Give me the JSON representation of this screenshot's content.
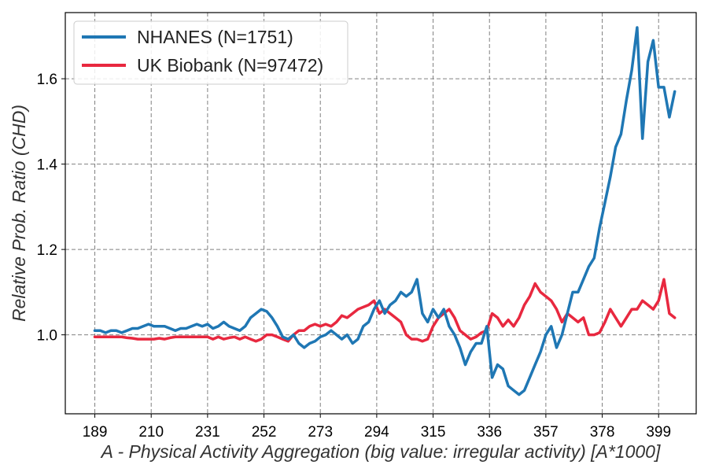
{
  "chart_data": {
    "type": "line",
    "xlabel": "A - Physical Activity Aggregation (big value: irregular activity) [A*1000]",
    "ylabel": "Relative Prob. Ratio (CHD)",
    "xlim": [
      178,
      413
    ],
    "ylim": [
      0.815,
      1.755
    ],
    "xticks": [
      189,
      210,
      231,
      252,
      273,
      294,
      315,
      336,
      357,
      378,
      399
    ],
    "yticks": [
      1.0,
      1.2,
      1.4,
      1.6
    ],
    "ytick_labels": [
      "1.0",
      "1.2",
      "1.4",
      "1.6"
    ],
    "grid": true,
    "legend_position": "top-left",
    "series": [
      {
        "name": "NHANES (N=1751)",
        "color": "#1f77b4",
        "x": [
          189,
          191,
          193,
          195,
          197,
          199,
          201,
          203,
          205,
          207,
          209,
          211,
          213,
          215,
          217,
          219,
          221,
          223,
          225,
          227,
          229,
          231,
          233,
          235,
          237,
          239,
          241,
          243,
          245,
          247,
          249,
          251,
          253,
          255,
          257,
          259,
          261,
          263,
          265,
          267,
          269,
          271,
          273,
          275,
          277,
          279,
          281,
          283,
          285,
          287,
          289,
          291,
          293,
          295,
          297,
          299,
          301,
          303,
          305,
          307,
          309,
          311,
          313,
          315,
          317,
          319,
          321,
          323,
          325,
          327,
          329,
          331,
          333,
          335,
          337,
          339,
          341,
          343,
          345,
          347,
          349,
          351,
          353,
          355,
          357,
          359,
          361,
          363,
          365,
          367,
          369,
          371,
          373,
          375,
          377,
          379,
          381,
          383,
          385,
          387,
          389,
          391,
          393,
          395,
          397,
          399,
          401,
          403,
          405
        ],
        "values": [
          1.01,
          1.01,
          1.005,
          1.01,
          1.01,
          1.005,
          1.01,
          1.015,
          1.015,
          1.02,
          1.025,
          1.02,
          1.02,
          1.02,
          1.015,
          1.01,
          1.015,
          1.015,
          1.02,
          1.025,
          1.02,
          1.025,
          1.015,
          1.02,
          1.03,
          1.02,
          1.015,
          1.01,
          1.02,
          1.04,
          1.05,
          1.06,
          1.055,
          1.04,
          1.02,
          0.995,
          0.99,
          1.0,
          0.98,
          0.97,
          0.98,
          0.985,
          0.995,
          1.0,
          1.01,
          1.0,
          0.99,
          1.0,
          0.98,
          0.99,
          1.02,
          1.03,
          1.06,
          1.08,
          1.05,
          1.07,
          1.08,
          1.1,
          1.09,
          1.1,
          1.13,
          1.05,
          1.03,
          1.06,
          1.04,
          1.06,
          1.02,
          1.0,
          0.97,
          0.93,
          0.96,
          0.98,
          0.98,
          1.02,
          0.9,
          0.93,
          0.92,
          0.88,
          0.87,
          0.86,
          0.87,
          0.9,
          0.93,
          0.96,
          1.0,
          1.02,
          0.97,
          1.0,
          1.05,
          1.1,
          1.1,
          1.13,
          1.16,
          1.18,
          1.25,
          1.31,
          1.37,
          1.44,
          1.47,
          1.55,
          1.62,
          1.72,
          1.46,
          1.64,
          1.69,
          1.58,
          1.58,
          1.51,
          1.57
        ]
      },
      {
        "name": "UK Biobank (N=97472)",
        "color": "#e8283f",
        "x": [
          189,
          191,
          193,
          195,
          197,
          199,
          201,
          203,
          205,
          207,
          209,
          211,
          213,
          215,
          217,
          219,
          221,
          223,
          225,
          227,
          229,
          231,
          233,
          235,
          237,
          239,
          241,
          243,
          245,
          247,
          249,
          251,
          253,
          255,
          257,
          259,
          261,
          263,
          265,
          267,
          269,
          271,
          273,
          275,
          277,
          279,
          281,
          283,
          285,
          287,
          289,
          291,
          293,
          295,
          297,
          299,
          301,
          303,
          305,
          307,
          309,
          311,
          313,
          315,
          317,
          319,
          321,
          323,
          325,
          327,
          329,
          331,
          333,
          335,
          337,
          339,
          341,
          343,
          345,
          347,
          349,
          351,
          353,
          355,
          357,
          359,
          361,
          363,
          365,
          367,
          369,
          371,
          373,
          375,
          377,
          379,
          381,
          383,
          385,
          387,
          389,
          391,
          393,
          395,
          397,
          399,
          401,
          403,
          405
        ],
        "values": [
          0.995,
          0.995,
          0.995,
          0.995,
          0.995,
          0.995,
          0.993,
          0.992,
          0.99,
          0.99,
          0.99,
          0.99,
          0.992,
          0.99,
          0.993,
          0.995,
          0.995,
          0.995,
          0.995,
          0.995,
          0.995,
          0.995,
          0.99,
          0.995,
          0.99,
          0.993,
          0.995,
          0.99,
          0.995,
          0.99,
          0.985,
          0.99,
          1.0,
          1.0,
          0.995,
          0.99,
          0.985,
          1.0,
          1.01,
          1.01,
          1.02,
          1.025,
          1.02,
          1.025,
          1.02,
          1.03,
          1.045,
          1.04,
          1.05,
          1.06,
          1.065,
          1.07,
          1.08,
          1.05,
          1.06,
          1.05,
          1.04,
          1.03,
          1.0,
          0.99,
          0.99,
          0.985,
          0.99,
          1.02,
          1.04,
          1.05,
          1.06,
          1.04,
          1.01,
          1.0,
          0.99,
          0.995,
          1.005,
          1.01,
          1.05,
          1.04,
          1.02,
          1.035,
          1.02,
          1.04,
          1.07,
          1.09,
          1.12,
          1.1,
          1.09,
          1.08,
          1.06,
          1.03,
          1.05,
          1.04,
          1.03,
          1.04,
          1.0,
          1.0,
          1.005,
          1.03,
          1.06,
          1.04,
          1.02,
          1.04,
          1.06,
          1.06,
          1.08,
          1.07,
          1.06,
          1.08,
          1.13,
          1.05,
          1.04
        ]
      }
    ]
  }
}
